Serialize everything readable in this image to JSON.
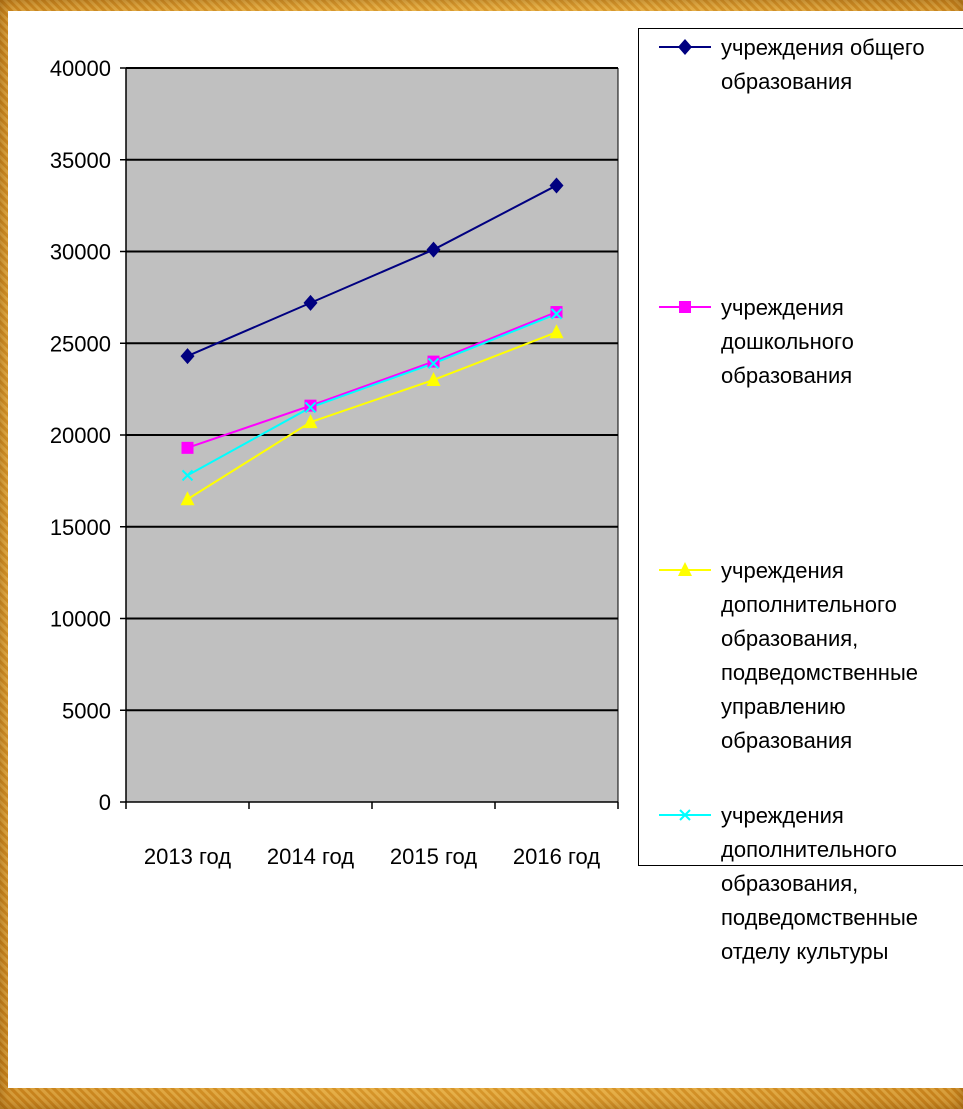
{
  "chart_data": {
    "type": "line",
    "categories": [
      "2013 год",
      "2014 год",
      "2015 год",
      "2016 год"
    ],
    "ylim": [
      0,
      40000
    ],
    "yticks": [
      0,
      5000,
      10000,
      15000,
      20000,
      25000,
      30000,
      35000,
      40000
    ],
    "ytick_labels": [
      "0",
      "5000",
      "10000",
      "15000",
      "20000",
      "25000",
      "30000",
      "35000",
      "40000"
    ],
    "grid": true,
    "plot_background": "#c0c0c0",
    "legend_position": "right",
    "series": [
      {
        "name": "учреждения общего образования",
        "label_lines": "учреждения общего\nобразования",
        "color": "#000080",
        "marker": "diamond",
        "values": [
          24300,
          27200,
          30100,
          33600
        ]
      },
      {
        "name": "учреждения дошкольного образования",
        "label_lines": "учреждения\nдошкольного\nобразования",
        "color": "#ff00ff",
        "marker": "square",
        "values": [
          19300,
          21600,
          24000,
          26700
        ]
      },
      {
        "name": "учреждения дополнительного образования, подведомственные управлению образования",
        "label_lines": "учреждения\nдополнительного\nобразования,\nподведомственные\nуправлению\nобразования",
        "color": "#ffff00",
        "marker": "triangle",
        "values": [
          16500,
          20700,
          23000,
          25600
        ]
      },
      {
        "name": "учреждения дополнительного образования, подведомственные отделу культуры",
        "label_lines": "учреждения\nдополнительного\nобразования,\nподведомственные\nотделу культуры",
        "color": "#00ffff",
        "marker": "x",
        "values": [
          17800,
          21500,
          23900,
          26600
        ]
      }
    ]
  }
}
